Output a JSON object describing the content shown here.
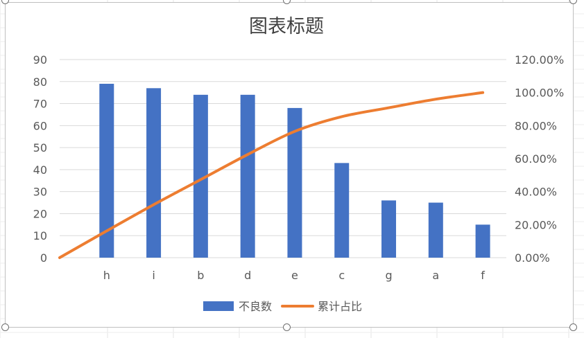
{
  "chart_data": {
    "type": "bar",
    "title": "图表标题",
    "categories": [
      "h",
      "i",
      "b",
      "d",
      "e",
      "c",
      "g",
      "a",
      "f"
    ],
    "series": [
      {
        "name": "不良数",
        "type": "bar",
        "axis": "left",
        "color": "#4472c4",
        "values": [
          79,
          77,
          74,
          74,
          68,
          43,
          26,
          25,
          15
        ]
      },
      {
        "name": "累计占比",
        "type": "line",
        "axis": "right",
        "color": "#ed7d31",
        "x": [
          0,
          1,
          2,
          3,
          4,
          5,
          6,
          7,
          8,
          9
        ],
        "values": [
          0.0,
          16.2,
          32.1,
          47.3,
          62.5,
          76.5,
          85.4,
          90.8,
          96.0,
          100.0
        ]
      }
    ],
    "y_left": {
      "ylim": [
        0,
        90
      ],
      "ticks": [
        "0",
        "10",
        "20",
        "30",
        "40",
        "50",
        "60",
        "70",
        "80",
        "90"
      ]
    },
    "y_right": {
      "ylim": [
        0,
        120
      ],
      "ticks": [
        "0.00%",
        "20.00%",
        "40.00%",
        "60.00%",
        "80.00%",
        "100.00%",
        "120.00%"
      ]
    },
    "grid": true,
    "legend": "bottom"
  }
}
